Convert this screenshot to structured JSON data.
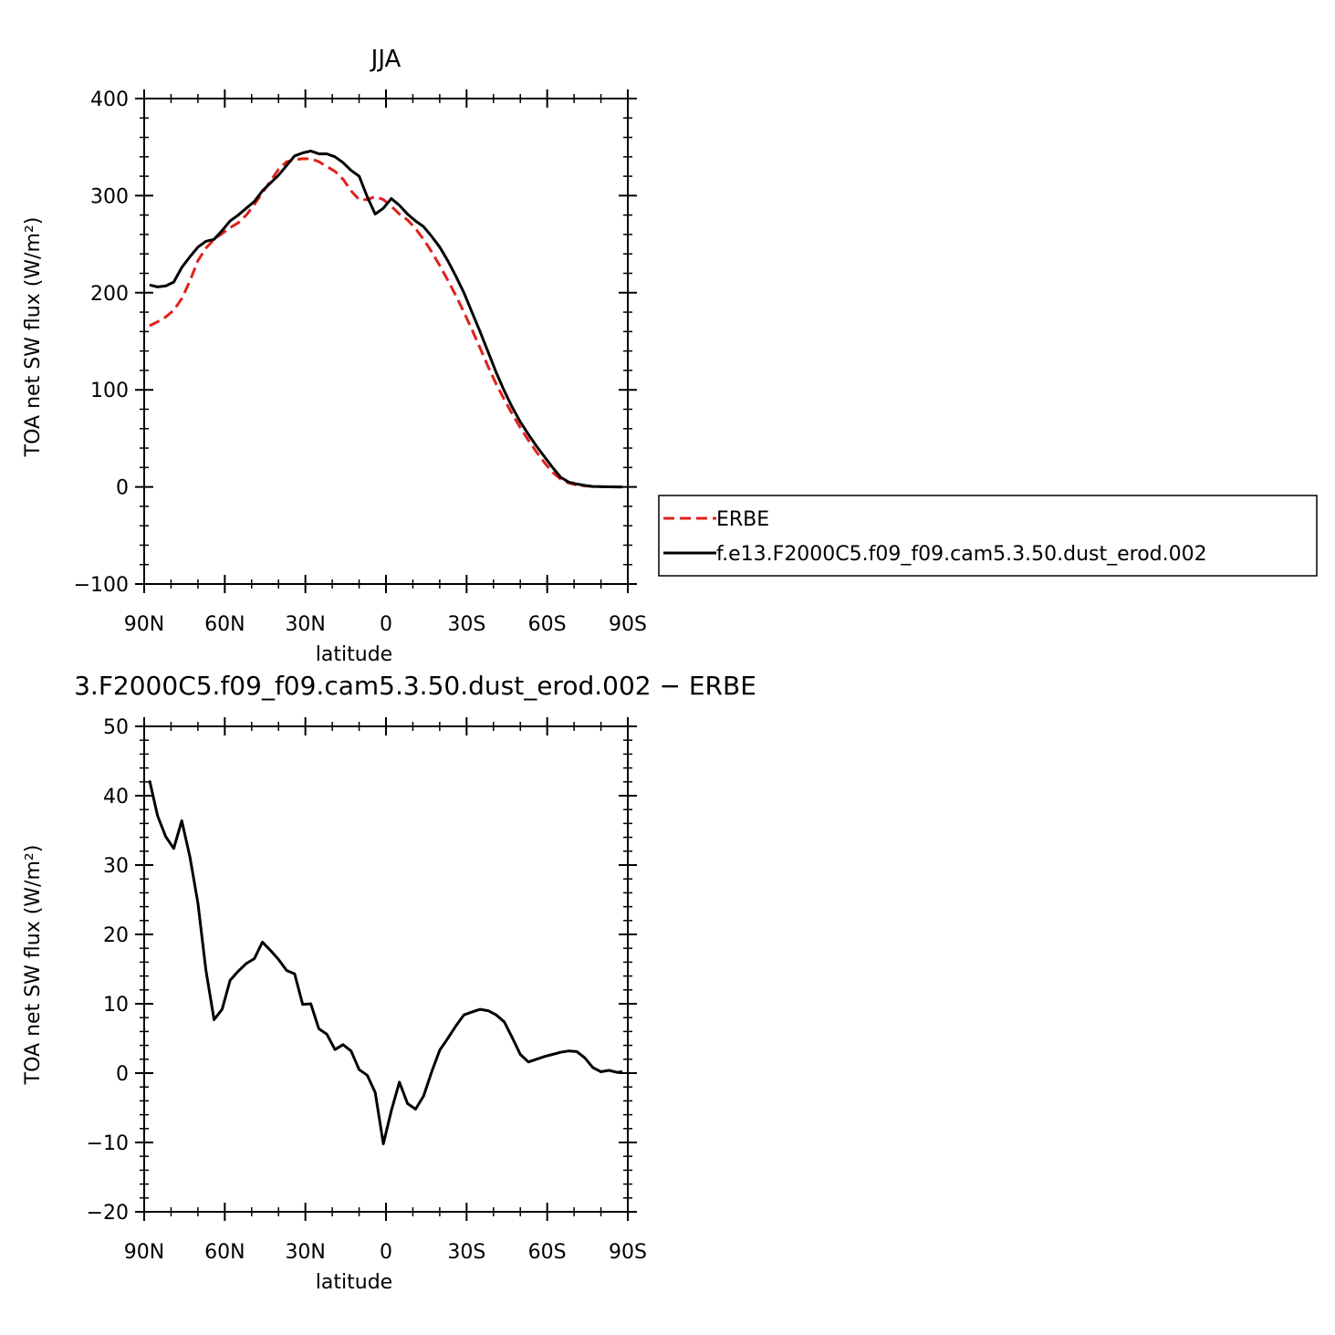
{
  "chart_data": [
    {
      "type": "line",
      "title": "JJA",
      "xlabel": "latitude",
      "ylabel": "TOA net SW flux (W/m²)",
      "xlim": [
        90,
        -90
      ],
      "ylim": [
        -100,
        400
      ],
      "yticks": [
        -100,
        0,
        100,
        200,
        300,
        400
      ],
      "xticks": [
        90,
        60,
        30,
        0,
        -30,
        -60,
        -90
      ],
      "xtick_labels": [
        "90N",
        "60N",
        "30N",
        "0",
        "30S",
        "60S",
        "90S"
      ],
      "legend_position": "right",
      "series": [
        {
          "name": "ERBE",
          "color": "#e0201b",
          "dash": "dashed",
          "x": [
            88,
            85,
            82,
            79,
            76,
            73,
            70,
            67,
            64,
            61,
            58,
            55,
            52,
            49,
            46,
            43,
            40,
            37,
            34,
            31,
            28,
            25,
            22,
            19,
            16,
            13,
            10,
            7,
            4,
            1,
            -2,
            -5,
            -8,
            -11,
            -14,
            -17,
            -20,
            -23,
            -26,
            -29,
            -32,
            -35,
            -38,
            -41,
            -44,
            -47,
            -50,
            -53,
            -56,
            -59,
            -62,
            -65,
            -68,
            -71,
            -74,
            -77,
            -80,
            -83,
            -86,
            -88
          ],
          "y": [
            166,
            170,
            175,
            182,
            194,
            212,
            233,
            246,
            255,
            261,
            267,
            272,
            280,
            291,
            303,
            315,
            327,
            335,
            337,
            338,
            338,
            335,
            330,
            325,
            317,
            305,
            296,
            296,
            299,
            296,
            289,
            281,
            275,
            266,
            255,
            242,
            228,
            213,
            197,
            180,
            162,
            143,
            124,
            106,
            90,
            75,
            61,
            48,
            36,
            25,
            15,
            8,
            4,
            2,
            1,
            0.5,
            0.2,
            0.1,
            0,
            0
          ]
        },
        {
          "name": "f.e13.F2000C5.f09_f09.cam5.3.50.dust_erod.002",
          "color": "#000000",
          "dash": "solid",
          "x": [
            88,
            85,
            82,
            79,
            76,
            73,
            70,
            67,
            64,
            61,
            58,
            55,
            52,
            49,
            46,
            43,
            40,
            37,
            34,
            31,
            28,
            25,
            22,
            19,
            16,
            13,
            10,
            7,
            4,
            1,
            -2,
            -5,
            -8,
            -11,
            -14,
            -17,
            -20,
            -23,
            -26,
            -29,
            -32,
            -35,
            -38,
            -41,
            -44,
            -47,
            -50,
            -53,
            -56,
            -59,
            -62,
            -65,
            -68,
            -71,
            -74,
            -77,
            -80,
            -83,
            -86,
            -88
          ],
          "y": [
            208,
            206,
            207,
            211,
            226,
            237,
            247,
            253,
            255,
            264,
            274,
            280,
            287,
            294,
            305,
            313,
            321,
            331,
            341,
            344,
            346,
            343,
            343,
            340,
            334,
            326,
            320,
            299,
            281,
            287,
            297,
            290,
            281,
            274,
            268,
            258,
            247,
            233,
            217,
            200,
            180,
            160,
            139,
            118,
            99,
            82,
            67,
            54,
            42,
            31,
            20,
            10,
            5,
            3,
            1.5,
            0.5,
            0.3,
            0.1,
            0,
            0
          ]
        }
      ]
    },
    {
      "type": "line",
      "title": "3.F2000C5.f09_f09.cam5.3.50.dust_erod.002 − ERBE",
      "xlabel": "latitude",
      "ylabel": "TOA net SW flux (W/m²)",
      "xlim": [
        90,
        -90
      ],
      "ylim": [
        -20,
        50
      ],
      "yticks": [
        -20,
        -10,
        0,
        10,
        20,
        30,
        40,
        50
      ],
      "xticks": [
        90,
        60,
        30,
        0,
        -30,
        -60,
        -90
      ],
      "xtick_labels": [
        "90N",
        "60N",
        "30N",
        "0",
        "30S",
        "60S",
        "90S"
      ],
      "series": [
        {
          "color": "#000000",
          "dash": "solid",
          "x": [
            88,
            85,
            82,
            79,
            76,
            73,
            70,
            67,
            64,
            61,
            58,
            55,
            52,
            49,
            46,
            43,
            40,
            37,
            34,
            31,
            28,
            25,
            22,
            19,
            16,
            13,
            10,
            7,
            4,
            1,
            -2,
            -5,
            -8,
            -11,
            -14,
            -17,
            -20,
            -23,
            -26,
            -29,
            -32,
            -35,
            -38,
            -41,
            -44,
            -47,
            -50,
            -53,
            -56,
            -59,
            -62,
            -65,
            -68,
            -71,
            -74,
            -77,
            -80,
            -83,
            -86,
            -88
          ],
          "y": [
            42.2,
            37.1,
            34.1,
            32.4,
            36.4,
            31.2,
            24.5,
            14.8,
            7.7,
            9.2,
            13.4,
            14.7,
            15.8,
            16.5,
            18.9,
            17.7,
            16.4,
            14.8,
            14.3,
            9.9,
            10.0,
            6.4,
            5.6,
            3.4,
            4.1,
            3.2,
            0.5,
            -0.3,
            -2.8,
            -10.2,
            -5.4,
            -1.3,
            -4.4,
            -5.2,
            -3.3,
            0.2,
            3.3,
            5.0,
            6.8,
            8.4,
            8.8,
            9.2,
            9.0,
            8.4,
            7.4,
            5.1,
            2.7,
            1.6,
            2.0,
            2.4,
            2.7,
            3.0,
            3.2,
            3.1,
            2.2,
            0.8,
            0.2,
            0.4,
            0.1,
            0.2
          ]
        }
      ]
    }
  ]
}
